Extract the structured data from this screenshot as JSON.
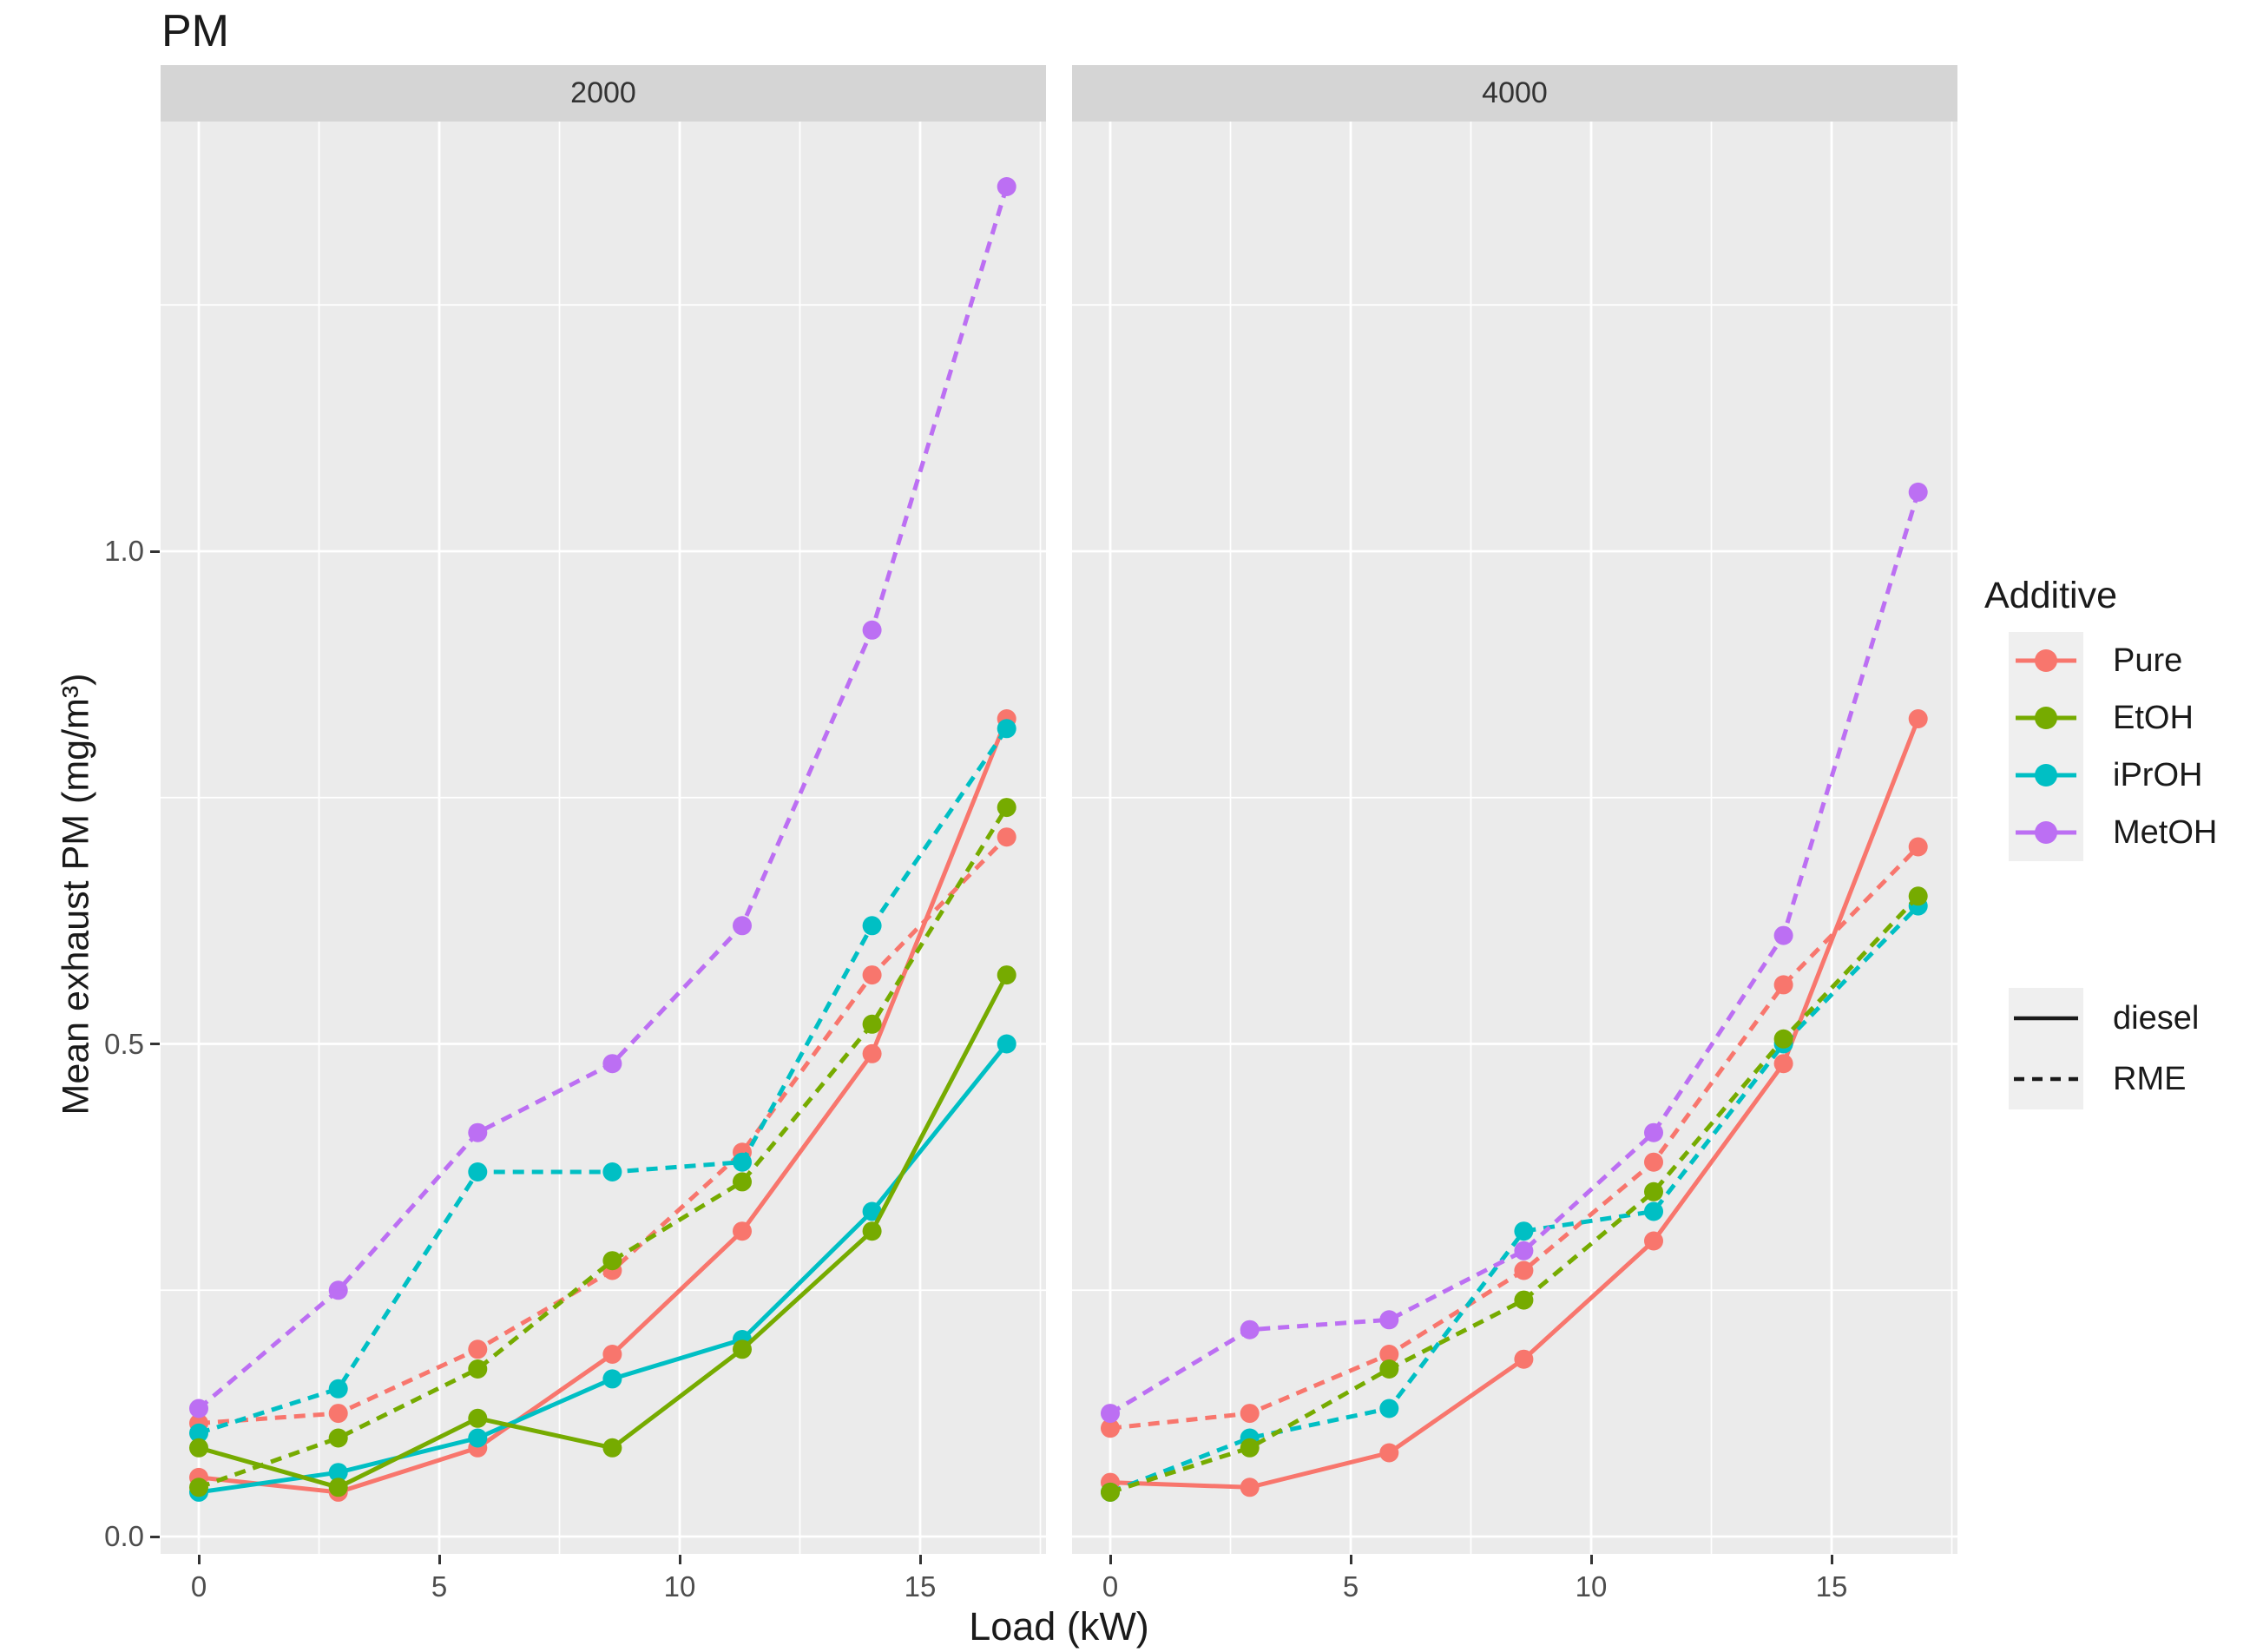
{
  "title": "PM",
  "colors": {
    "additives": {
      "Pure": "#F8766D",
      "EtOH": "#76AB00",
      "iPrOH": "#00BFC4",
      "MetOH": "#BC6FF3"
    },
    "panel_background": "#EBEBEB",
    "strip_background": "#D5D5D5",
    "gridline": "#FFFFFF",
    "legend_key_background": "#EFEFEF",
    "tick_text": "#4D4D4D",
    "text": "#1A1A1A"
  },
  "legend": {
    "additive_title": "Additive",
    "additive_items": [
      {
        "label": "Pure"
      },
      {
        "label": "EtOH"
      },
      {
        "label": "iPrOH"
      },
      {
        "label": "MetOH"
      }
    ],
    "linetype_items": [
      {
        "label": "diesel",
        "linetype": "solid"
      },
      {
        "label": "RME",
        "linetype": "dashed"
      }
    ]
  },
  "chart_data": {
    "type": "line",
    "title": "PM",
    "xlabel": "Load (kW)",
    "ylabel": "Mean exhaust PM (mg/m³)",
    "facet_variable_values": [
      "2000",
      "4000"
    ],
    "legend_position": "right",
    "grid": "on",
    "x": [
      0,
      2.9,
      5.8,
      8.6,
      11.3,
      14,
      16.8
    ],
    "x_ticks": [
      "0",
      "5",
      "10",
      "15"
    ],
    "x_tick_values": [
      0,
      5,
      10,
      15
    ],
    "y_ticks": [
      "0.0",
      "0.5",
      "1.0"
    ],
    "y_tick_values": [
      0,
      0.5,
      1.0
    ],
    "xlim": [
      -0.8,
      17.6
    ],
    "ylim": [
      -0.02,
      1.44
    ],
    "series": [
      {
        "facet": "2000",
        "additive": "Pure",
        "fuel": "diesel",
        "values": [
          0.06,
          0.045,
          0.09,
          0.185,
          0.31,
          0.49,
          0.83
        ]
      },
      {
        "facet": "2000",
        "additive": "Pure",
        "fuel": "RME",
        "values": [
          0.115,
          0.125,
          0.19,
          0.27,
          0.39,
          0.57,
          0.71
        ]
      },
      {
        "facet": "2000",
        "additive": "iPrOH",
        "fuel": "diesel",
        "values": [
          0.045,
          0.065,
          0.1,
          0.16,
          0.2,
          0.33,
          0.5
        ]
      },
      {
        "facet": "2000",
        "additive": "iPrOH",
        "fuel": "RME",
        "values": [
          0.105,
          0.15,
          0.37,
          0.37,
          0.38,
          0.62,
          0.82
        ]
      },
      {
        "facet": "2000",
        "additive": "EtOH",
        "fuel": "diesel",
        "values": [
          0.09,
          0.05,
          0.12,
          0.09,
          0.19,
          0.31,
          0.57
        ]
      },
      {
        "facet": "2000",
        "additive": "EtOH",
        "fuel": "RME",
        "values": [
          0.05,
          0.1,
          0.17,
          0.28,
          0.36,
          0.52,
          0.74
        ]
      },
      {
        "facet": "2000",
        "additive": "MetOH",
        "fuel": "RME",
        "values": [
          0.13,
          0.25,
          0.41,
          0.48,
          0.62,
          0.92,
          1.37
        ]
      },
      {
        "facet": "4000",
        "additive": "Pure",
        "fuel": "diesel",
        "values": [
          0.055,
          0.05,
          0.085,
          0.18,
          0.3,
          0.48,
          0.83
        ]
      },
      {
        "facet": "4000",
        "additive": "Pure",
        "fuel": "RME",
        "values": [
          0.11,
          0.125,
          0.185,
          0.27,
          0.38,
          0.56,
          0.7
        ]
      },
      {
        "facet": "4000",
        "additive": "iPrOH",
        "fuel": "RME",
        "values": [
          0.045,
          0.1,
          0.13,
          0.31,
          0.33,
          0.5,
          0.64
        ]
      },
      {
        "facet": "4000",
        "additive": "EtOH",
        "fuel": "RME",
        "values": [
          0.045,
          0.09,
          0.17,
          0.24,
          0.35,
          0.505,
          0.65
        ]
      },
      {
        "facet": "4000",
        "additive": "MetOH",
        "fuel": "RME",
        "values": [
          0.125,
          0.21,
          0.22,
          0.29,
          0.41,
          0.61,
          1.06
        ]
      }
    ]
  }
}
